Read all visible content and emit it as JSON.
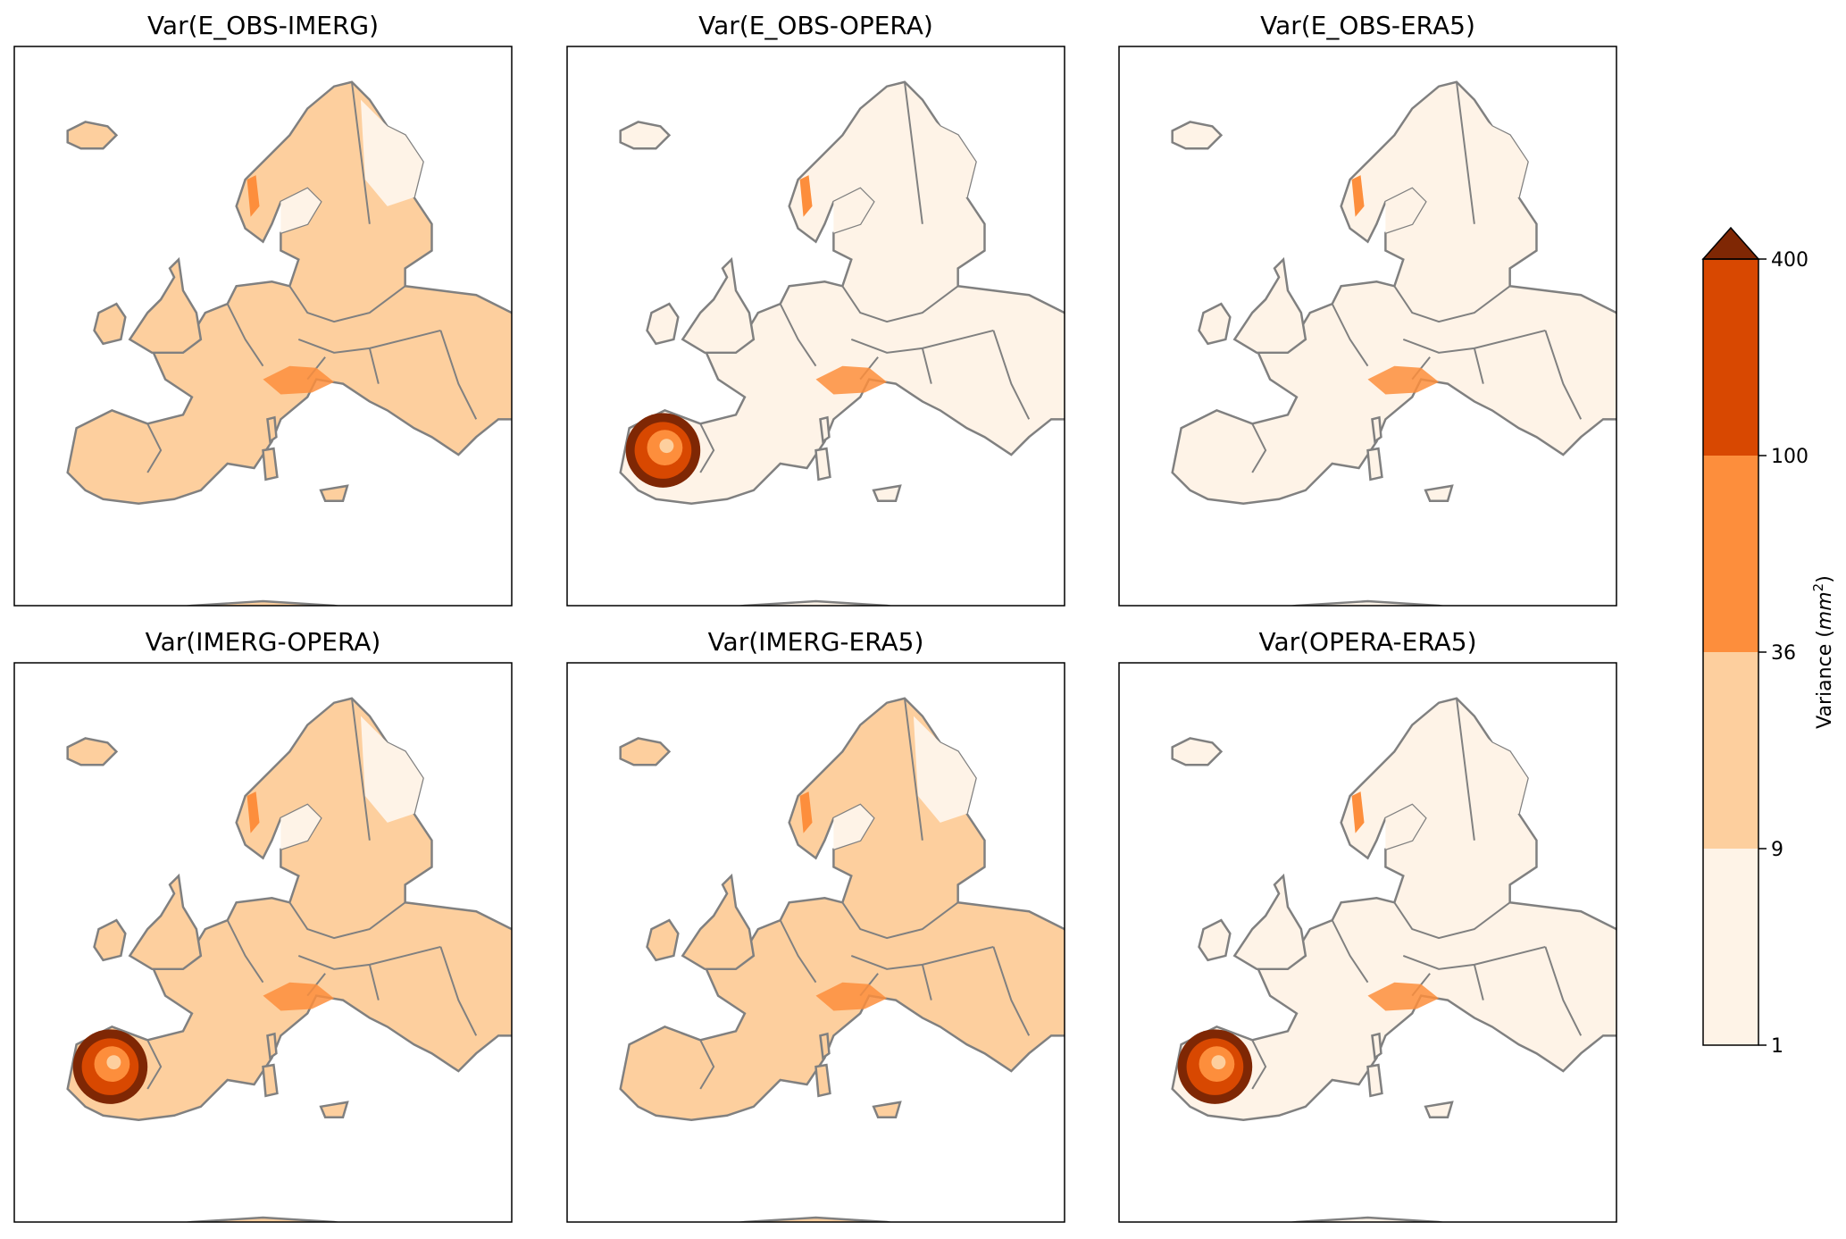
{
  "chart_data": {
    "type": "heatmap",
    "subtype": "choropleth-map-grid",
    "layout": {
      "rows": 2,
      "cols": 3
    },
    "panels": [
      {
        "title": "Var(E_OBS-IMERG)",
        "dominant_class": 1,
        "hotspots": []
      },
      {
        "title": "Var(E_OBS-OPERA)",
        "dominant_class": 0,
        "hotspots": [
          "spain-radar-ring"
        ]
      },
      {
        "title": "Var(E_OBS-ERA5)",
        "dominant_class": 0,
        "hotspots": []
      },
      {
        "title": "Var(IMERG-OPERA)",
        "dominant_class": 1,
        "hotspots": [
          "spain-radar-ring"
        ]
      },
      {
        "title": "Var(IMERG-ERA5)",
        "dominant_class": 1,
        "hotspots": []
      },
      {
        "title": "Var(OPERA-ERA5)",
        "dominant_class": 0,
        "hotspots": [
          "spain-radar-ring"
        ]
      }
    ],
    "colorbar": {
      "label": "Variance (mm²)",
      "label_prefix": "Variance (",
      "label_unit": "mm",
      "label_exp": "2",
      "label_suffix": ")",
      "ticks": [
        "1",
        "9",
        "36",
        "100",
        "400"
      ],
      "boundaries": [
        1,
        9,
        36,
        100,
        400
      ],
      "extend": "max",
      "colors": [
        "#fef3e7",
        "#fdcf9e",
        "#fd8e3c",
        "#d84801",
        "#7f2704"
      ]
    },
    "map_colors": {
      "coast": "#808080",
      "nodata": "#ffffff"
    }
  }
}
